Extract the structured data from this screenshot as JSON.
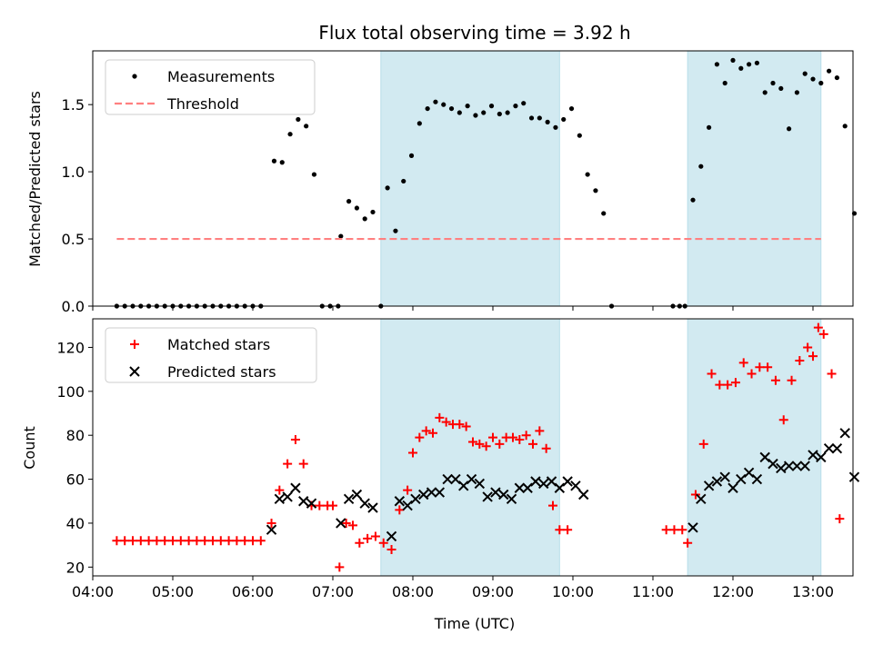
{
  "chart_data": [
    {
      "type": "scatter",
      "title": "Flux total observing time = 3.92 h",
      "xlabel": "",
      "ylabel": "Matched/Predicted stars",
      "ylim": [
        0,
        1.9
      ],
      "yticks": [
        0.0,
        0.5,
        1.0,
        1.5
      ],
      "xlim": [
        "04:00",
        "13:30"
      ],
      "xticks": [
        "04:00",
        "05:00",
        "06:00",
        "07:00",
        "08:00",
        "09:00",
        "10:00",
        "11:00",
        "12:00",
        "13:00"
      ],
      "show_xtick_labels": false,
      "shaded_intervals": [
        [
          "07:36",
          "09:50"
        ],
        [
          "11:26",
          "13:06"
        ]
      ],
      "shade_color": "#add8e6",
      "legend": {
        "placement": "upper-left",
        "entries": [
          "Measurements",
          "Threshold"
        ]
      },
      "series": [
        {
          "name": "Measurements",
          "marker": "dot",
          "color": "#000000",
          "points": [
            [
              "04:18",
              0
            ],
            [
              "04:24",
              0
            ],
            [
              "04:30",
              0
            ],
            [
              "04:36",
              0
            ],
            [
              "04:42",
              0
            ],
            [
              "04:48",
              0
            ],
            [
              "04:54",
              0
            ],
            [
              "05:00",
              0
            ],
            [
              "05:06",
              0
            ],
            [
              "05:12",
              0
            ],
            [
              "05:18",
              0
            ],
            [
              "05:24",
              0
            ],
            [
              "05:30",
              0
            ],
            [
              "05:36",
              0
            ],
            [
              "05:42",
              0
            ],
            [
              "05:48",
              0
            ],
            [
              "05:54",
              0
            ],
            [
              "06:00",
              0
            ],
            [
              "06:06",
              0
            ],
            [
              "06:16",
              1.08
            ],
            [
              "06:22",
              1.07
            ],
            [
              "06:28",
              1.28
            ],
            [
              "06:34",
              1.39
            ],
            [
              "06:40",
              1.34
            ],
            [
              "06:46",
              0.98
            ],
            [
              "06:52",
              0
            ],
            [
              "06:58",
              0
            ],
            [
              "07:04",
              0
            ],
            [
              "07:06",
              0.52
            ],
            [
              "07:12",
              0.78
            ],
            [
              "07:18",
              0.73
            ],
            [
              "07:24",
              0.65
            ],
            [
              "07:30",
              0.7
            ],
            [
              "07:36",
              0
            ],
            [
              "07:41",
              0.88
            ],
            [
              "07:47",
              0.56
            ],
            [
              "07:53",
              0.93
            ],
            [
              "07:59",
              1.12
            ],
            [
              "08:05",
              1.36
            ],
            [
              "08:11",
              1.47
            ],
            [
              "08:17",
              1.52
            ],
            [
              "08:23",
              1.5
            ],
            [
              "08:29",
              1.47
            ],
            [
              "08:35",
              1.44
            ],
            [
              "08:41",
              1.49
            ],
            [
              "08:47",
              1.42
            ],
            [
              "08:53",
              1.44
            ],
            [
              "08:59",
              1.49
            ],
            [
              "09:05",
              1.43
            ],
            [
              "09:11",
              1.44
            ],
            [
              "09:17",
              1.49
            ],
            [
              "09:23",
              1.51
            ],
            [
              "09:29",
              1.4
            ],
            [
              "09:35",
              1.4
            ],
            [
              "09:41",
              1.37
            ],
            [
              "09:47",
              1.33
            ],
            [
              "09:53",
              1.39
            ],
            [
              "09:59",
              1.47
            ],
            [
              "10:05",
              1.27
            ],
            [
              "10:11",
              0.98
            ],
            [
              "10:17",
              0.86
            ],
            [
              "10:23",
              0.69
            ],
            [
              "10:29",
              0
            ],
            [
              "11:15",
              0
            ],
            [
              "11:20",
              0
            ],
            [
              "11:24",
              0
            ],
            [
              "11:30",
              0.79
            ],
            [
              "11:36",
              1.04
            ],
            [
              "11:42",
              1.33
            ],
            [
              "11:48",
              1.8
            ],
            [
              "11:54",
              1.66
            ],
            [
              "12:00",
              1.83
            ],
            [
              "12:06",
              1.77
            ],
            [
              "12:12",
              1.8
            ],
            [
              "12:18",
              1.81
            ],
            [
              "12:24",
              1.59
            ],
            [
              "12:30",
              1.66
            ],
            [
              "12:36",
              1.62
            ],
            [
              "12:42",
              1.32
            ],
            [
              "12:48",
              1.59
            ],
            [
              "12:54",
              1.73
            ],
            [
              "13:00",
              1.69
            ],
            [
              "13:06",
              1.66
            ],
            [
              "13:12",
              1.75
            ],
            [
              "13:18",
              1.7
            ],
            [
              "13:24",
              1.34
            ],
            [
              "13:31",
              0.69
            ]
          ]
        },
        {
          "name": "Threshold",
          "style": "dashed-line",
          "color": "#ff8080",
          "x_range": [
            "04:18",
            "13:06"
          ],
          "value": 0.5
        }
      ]
    },
    {
      "type": "scatter",
      "xlabel": "Time (UTC)",
      "ylabel": "Count",
      "ylim": [
        16,
        133
      ],
      "yticks": [
        20,
        40,
        60,
        80,
        100,
        120
      ],
      "xlim": [
        "04:00",
        "13:30"
      ],
      "xticks": [
        "04:00",
        "05:00",
        "06:00",
        "07:00",
        "08:00",
        "09:00",
        "10:00",
        "11:00",
        "12:00",
        "13:00"
      ],
      "shaded_intervals": [
        [
          "07:36",
          "09:50"
        ],
        [
          "11:26",
          "13:06"
        ]
      ],
      "shade_color": "#add8e6",
      "legend": {
        "placement": "upper-left",
        "entries": [
          "Matched stars",
          "Predicted stars"
        ]
      },
      "series": [
        {
          "name": "Matched stars",
          "marker": "plus",
          "color": "#ff0000",
          "points": [
            [
              "04:18",
              32
            ],
            [
              "04:24",
              32
            ],
            [
              "04:30",
              32
            ],
            [
              "04:36",
              32
            ],
            [
              "04:42",
              32
            ],
            [
              "04:48",
              32
            ],
            [
              "04:54",
              32
            ],
            [
              "05:00",
              32
            ],
            [
              "05:06",
              32
            ],
            [
              "05:12",
              32
            ],
            [
              "05:18",
              32
            ],
            [
              "05:24",
              32
            ],
            [
              "05:30",
              32
            ],
            [
              "05:36",
              32
            ],
            [
              "05:42",
              32
            ],
            [
              "05:48",
              32
            ],
            [
              "05:54",
              32
            ],
            [
              "06:00",
              32
            ],
            [
              "06:06",
              32
            ],
            [
              "06:14",
              40
            ],
            [
              "06:20",
              55
            ],
            [
              "06:26",
              67
            ],
            [
              "06:32",
              78
            ],
            [
              "06:38",
              67
            ],
            [
              "06:44",
              48
            ],
            [
              "06:50",
              48
            ],
            [
              "06:56",
              48
            ],
            [
              "07:00",
              48
            ],
            [
              "07:05",
              20
            ],
            [
              "07:10",
              40
            ],
            [
              "07:15",
              39
            ],
            [
              "07:20",
              31
            ],
            [
              "07:26",
              33
            ],
            [
              "07:32",
              34
            ],
            [
              "07:38",
              31
            ],
            [
              "07:44",
              28
            ],
            [
              "07:50",
              46
            ],
            [
              "07:56",
              55
            ],
            [
              "08:00",
              72
            ],
            [
              "08:05",
              79
            ],
            [
              "08:10",
              82
            ],
            [
              "08:15",
              81
            ],
            [
              "08:20",
              88
            ],
            [
              "08:25",
              86
            ],
            [
              "08:30",
              85
            ],
            [
              "08:35",
              85
            ],
            [
              "08:40",
              84
            ],
            [
              "08:45",
              77
            ],
            [
              "08:50",
              76
            ],
            [
              "08:55",
              75
            ],
            [
              "09:00",
              79
            ],
            [
              "09:05",
              76
            ],
            [
              "09:10",
              79
            ],
            [
              "09:15",
              79
            ],
            [
              "09:20",
              78
            ],
            [
              "09:25",
              80
            ],
            [
              "09:30",
              76
            ],
            [
              "09:35",
              82
            ],
            [
              "09:40",
              74
            ],
            [
              "09:45",
              48
            ],
            [
              "09:50",
              37
            ],
            [
              "09:56",
              37
            ],
            [
              "11:10",
              37
            ],
            [
              "11:16",
              37
            ],
            [
              "11:22",
              37
            ],
            [
              "11:26",
              31
            ],
            [
              "11:32",
              53
            ],
            [
              "11:38",
              76
            ],
            [
              "11:44",
              108
            ],
            [
              "11:50",
              103
            ],
            [
              "11:56",
              103
            ],
            [
              "12:02",
              104
            ],
            [
              "12:08",
              113
            ],
            [
              "12:14",
              108
            ],
            [
              "12:20",
              111
            ],
            [
              "12:26",
              111
            ],
            [
              "12:32",
              105
            ],
            [
              "12:38",
              87
            ],
            [
              "12:44",
              105
            ],
            [
              "12:50",
              114
            ],
            [
              "12:56",
              120
            ],
            [
              "13:00",
              116
            ],
            [
              "13:04",
              129
            ],
            [
              "13:08",
              126
            ],
            [
              "13:14",
              108
            ],
            [
              "13:20",
              42
            ]
          ]
        },
        {
          "name": "Predicted stars",
          "marker": "x",
          "color": "#000000",
          "points": [
            [
              "06:14",
              37
            ],
            [
              "06:20",
              51
            ],
            [
              "06:26",
              52
            ],
            [
              "06:32",
              56
            ],
            [
              "06:38",
              50
            ],
            [
              "06:44",
              49
            ],
            [
              "07:06",
              40
            ],
            [
              "07:12",
              51
            ],
            [
              "07:18",
              53
            ],
            [
              "07:24",
              49
            ],
            [
              "07:30",
              47
            ],
            [
              "07:44",
              34
            ],
            [
              "07:50",
              50
            ],
            [
              "07:56",
              48
            ],
            [
              "08:02",
              51
            ],
            [
              "08:08",
              53
            ],
            [
              "08:14",
              54
            ],
            [
              "08:20",
              54
            ],
            [
              "08:26",
              60
            ],
            [
              "08:32",
              60
            ],
            [
              "08:38",
              57
            ],
            [
              "08:44",
              60
            ],
            [
              "08:50",
              58
            ],
            [
              "08:56",
              52
            ],
            [
              "09:02",
              54
            ],
            [
              "09:08",
              53
            ],
            [
              "09:14",
              51
            ],
            [
              "09:20",
              56
            ],
            [
              "09:26",
              56
            ],
            [
              "09:32",
              59
            ],
            [
              "09:38",
              58
            ],
            [
              "09:44",
              59
            ],
            [
              "09:50",
              56
            ],
            [
              "09:56",
              59
            ],
            [
              "10:02",
              57
            ],
            [
              "10:08",
              53
            ],
            [
              "11:30",
              38
            ],
            [
              "11:36",
              51
            ],
            [
              "11:42",
              57
            ],
            [
              "11:48",
              59
            ],
            [
              "11:54",
              61
            ],
            [
              "12:00",
              56
            ],
            [
              "12:06",
              60
            ],
            [
              "12:12",
              63
            ],
            [
              "12:18",
              60
            ],
            [
              "12:24",
              70
            ],
            [
              "12:30",
              67
            ],
            [
              "12:36",
              65
            ],
            [
              "12:42",
              66
            ],
            [
              "12:48",
              66
            ],
            [
              "12:54",
              66
            ],
            [
              "13:00",
              71
            ],
            [
              "13:06",
              70
            ],
            [
              "13:12",
              74
            ],
            [
              "13:18",
              74
            ],
            [
              "13:24",
              81
            ],
            [
              "13:31",
              61
            ]
          ]
        }
      ]
    }
  ]
}
